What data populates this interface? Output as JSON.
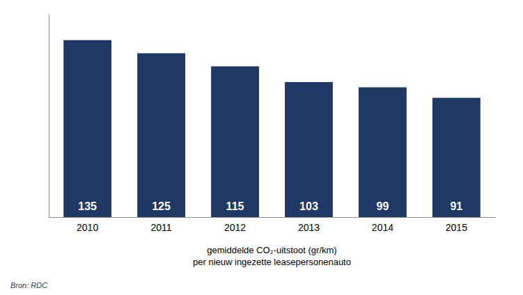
{
  "chart_data": {
    "type": "bar",
    "categories": [
      "2010",
      "2011",
      "2012",
      "2013",
      "2014",
      "2015"
    ],
    "values": [
      135,
      125,
      115,
      103,
      99,
      91
    ],
    "color": "#1F3864",
    "ylim": [
      0,
      155
    ],
    "xlabel": "gemiddelde CO₂-uitstoot (gr/km)\nper nieuw ingezette leasepersonenauto",
    "source": "Bron: RDC",
    "data_labels": true,
    "tick_labels": "x",
    "grid": false
  }
}
